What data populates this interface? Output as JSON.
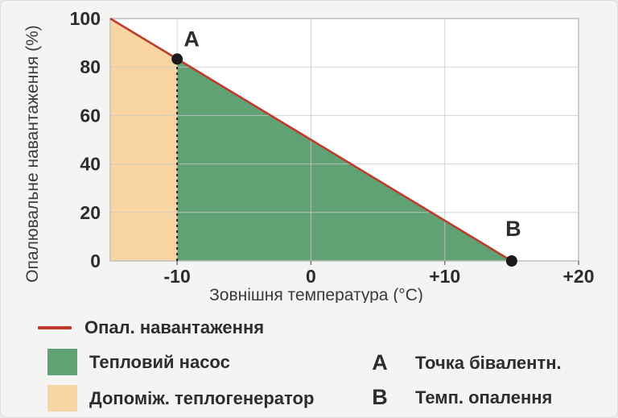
{
  "chart_data": {
    "type": "area",
    "title": "",
    "xlabel": "Зовнішня температура (°C)",
    "ylabel": "Опалювальне навантаження (%)",
    "xlim": [
      -15,
      20
    ],
    "ylim": [
      0,
      100
    ],
    "grid": true,
    "x_ticks": [
      {
        "value": -10,
        "label": "-10"
      },
      {
        "value": 0,
        "label": "0"
      },
      {
        "value": 10,
        "label": "+10"
      },
      {
        "value": 20,
        "label": "+20"
      }
    ],
    "y_ticks": [
      {
        "value": 0,
        "label": "0"
      },
      {
        "value": 20,
        "label": "20"
      },
      {
        "value": 40,
        "label": "40"
      },
      {
        "value": 60,
        "label": "60"
      },
      {
        "value": 80,
        "label": "80"
      },
      {
        "value": 100,
        "label": "100"
      }
    ],
    "line": {
      "name": "Опал. навантаження",
      "color": "#bf3b2e",
      "points": [
        [
          -15,
          100
        ],
        [
          15,
          0
        ]
      ]
    },
    "areas": [
      {
        "name": "Допоміж. теплогенератор",
        "color": "#f8d5a3",
        "points": [
          [
            -15,
            100
          ],
          [
            -10,
            83.3
          ],
          [
            -10,
            0
          ],
          [
            -15,
            0
          ]
        ]
      },
      {
        "name": "Тепловий насос",
        "color": "#60a273",
        "points": [
          [
            -10,
            83.3
          ],
          [
            15,
            0
          ],
          [
            -10,
            0
          ]
        ]
      }
    ],
    "divider": {
      "x": -10,
      "y_from": 0,
      "y_to": 83.3,
      "color": "#1f1f1f",
      "dashed": true
    },
    "markers": [
      {
        "label": "A",
        "x": -10,
        "y": 83.3,
        "meaning": "Точка бівалентн."
      },
      {
        "label": "B",
        "x": 15,
        "y": 0,
        "meaning": "Темп. опалення"
      }
    ],
    "colors": {
      "plot_bg": "#ffffff",
      "plot_border": "#bfbfbf",
      "grid": "#c9c9c9",
      "marker": "#1a1a1a",
      "text": "#2d2d2d"
    }
  },
  "legend": {
    "line": {
      "label": "Опал. навантаження",
      "color": "#bf3b2e"
    },
    "heat_pump": {
      "label": "Тепловий насос",
      "color": "#60a273"
    },
    "aux_generator": {
      "label": "Допоміж. теплогенератор",
      "color": "#f8d5a3"
    },
    "marker_a": {
      "symbol": "A",
      "label": "Точка бівалентн."
    },
    "marker_b": {
      "symbol": "B",
      "label": "Темп. опалення"
    }
  }
}
